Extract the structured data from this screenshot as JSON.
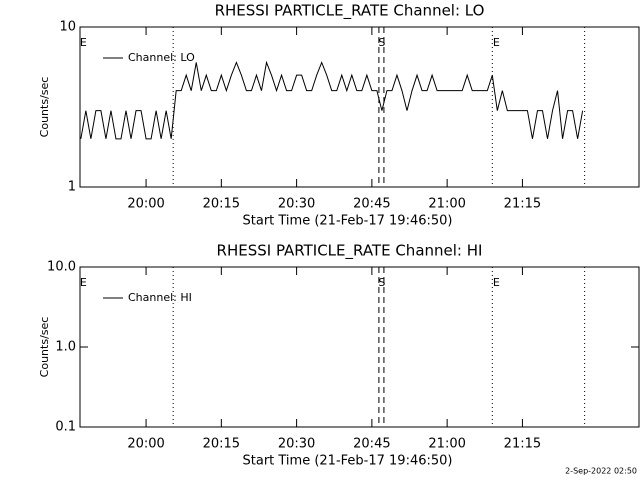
{
  "chart_data": [
    {
      "type": "line",
      "title": "RHESSI PARTICLE_RATE Channel: LO",
      "x_label": "Start Time (21-Feb-17 19:46:50)",
      "y_label": "Counts/sec",
      "log_y": true,
      "xlim": [
        "19:46:50",
        "21:38:14"
      ],
      "ylim": [
        1,
        10
      ],
      "yticks": [
        1,
        10
      ],
      "xticks": [
        "20:00",
        "20:15",
        "20:30",
        "20:45",
        "21:00",
        "21:15"
      ],
      "annotations": [
        {
          "x": "19:47:30",
          "text": "E"
        },
        {
          "x": "20:47:00",
          "text": "S"
        },
        {
          "x": "21:09:48",
          "text": "E"
        }
      ],
      "vlines": [
        {
          "x": "20:05:24",
          "style": "dotted"
        },
        {
          "x": "20:46:24",
          "style": "dashed"
        },
        {
          "x": "20:47:24",
          "style": "dashed"
        },
        {
          "x": "21:09:00",
          "style": "dotted"
        },
        {
          "x": "21:27:24",
          "style": "dotted"
        }
      ],
      "x": [
        "19:47",
        "19:48",
        "19:49",
        "19:50",
        "19:51",
        "19:52",
        "19:53",
        "19:54",
        "19:55",
        "19:56",
        "19:57",
        "19:58",
        "19:59",
        "20:00",
        "20:01",
        "20:02",
        "20:03",
        "20:04",
        "20:05",
        "20:06",
        "20:07",
        "20:08",
        "20:09",
        "20:10",
        "20:11",
        "20:12",
        "20:13",
        "20:14",
        "20:15",
        "20:16",
        "20:17",
        "20:18",
        "20:19",
        "20:20",
        "20:21",
        "20:22",
        "20:23",
        "20:24",
        "20:25",
        "20:26",
        "20:27",
        "20:28",
        "20:29",
        "20:30",
        "20:31",
        "20:32",
        "20:33",
        "20:34",
        "20:35",
        "20:36",
        "20:37",
        "20:38",
        "20:39",
        "20:40",
        "20:41",
        "20:42",
        "20:43",
        "20:44",
        "20:45",
        "20:46",
        "20:47",
        "20:48",
        "20:49",
        "20:50",
        "20:51",
        "20:52",
        "20:53",
        "20:54",
        "20:55",
        "20:56",
        "20:57",
        "20:58",
        "20:59",
        "21:00",
        "21:01",
        "21:02",
        "21:03",
        "21:04",
        "21:05",
        "21:06",
        "21:07",
        "21:08",
        "21:09",
        "21:10",
        "21:11",
        "21:12",
        "21:13",
        "21:14",
        "21:15",
        "21:16",
        "21:17",
        "21:18",
        "21:19",
        "21:20",
        "21:21",
        "21:22",
        "21:23",
        "21:24",
        "21:25",
        "21:26",
        "21:27"
      ],
      "series": [
        {
          "name": "Channel: LO",
          "color": "#000000",
          "values": [
            2,
            3,
            2,
            3,
            3,
            2,
            3,
            2,
            2,
            3,
            2,
            3,
            3,
            2,
            2,
            3,
            2,
            3,
            2,
            4,
            4,
            5,
            4,
            6,
            4,
            5,
            4,
            4,
            5,
            4,
            5,
            6,
            5,
            4,
            4,
            5,
            4,
            6,
            5,
            4,
            5,
            4,
            4,
            5,
            5,
            4,
            4,
            5,
            6,
            5,
            4,
            4,
            5,
            4,
            5,
            4,
            4,
            5,
            4,
            4,
            3,
            4,
            4,
            5,
            4,
            3,
            4,
            5,
            4,
            4,
            5,
            4,
            4,
            4,
            4,
            4,
            4,
            5,
            4,
            4,
            4,
            4,
            5,
            3,
            4,
            3,
            3,
            3,
            3,
            3,
            2,
            3,
            3,
            2,
            3,
            4,
            2,
            3,
            3,
            2,
            3
          ]
        }
      ]
    },
    {
      "type": "line",
      "title": "RHESSI PARTICLE_RATE Channel: HI",
      "x_label": "Start Time (21-Feb-17 19:46:50)",
      "y_label": "Counts/sec",
      "log_y": true,
      "xlim": [
        "19:46:50",
        "21:38:14"
      ],
      "ylim": [
        0.1,
        10
      ],
      "yticks": [
        {
          "value": 0.1,
          "label": "0.1"
        },
        {
          "value": 1,
          "label": "1.0"
        },
        {
          "value": 10,
          "label": "10.0"
        }
      ],
      "xticks": [
        "20:00",
        "20:15",
        "20:30",
        "20:45",
        "21:00",
        "21:15"
      ],
      "annotations": [
        {
          "x": "19:47:30",
          "text": "E"
        },
        {
          "x": "20:47:00",
          "text": "S"
        },
        {
          "x": "21:09:48",
          "text": "E"
        }
      ],
      "vlines": [
        {
          "x": "20:05:24",
          "style": "dotted"
        },
        {
          "x": "20:46:24",
          "style": "dashed"
        },
        {
          "x": "20:47:24",
          "style": "dashed"
        },
        {
          "x": "21:09:00",
          "style": "dotted"
        },
        {
          "x": "21:27:24",
          "style": "dotted"
        }
      ],
      "x": [],
      "series": [
        {
          "name": "Channel: HI",
          "color": "#000000",
          "values": []
        }
      ]
    }
  ],
  "footer": "2-Sep-2022 02:50"
}
